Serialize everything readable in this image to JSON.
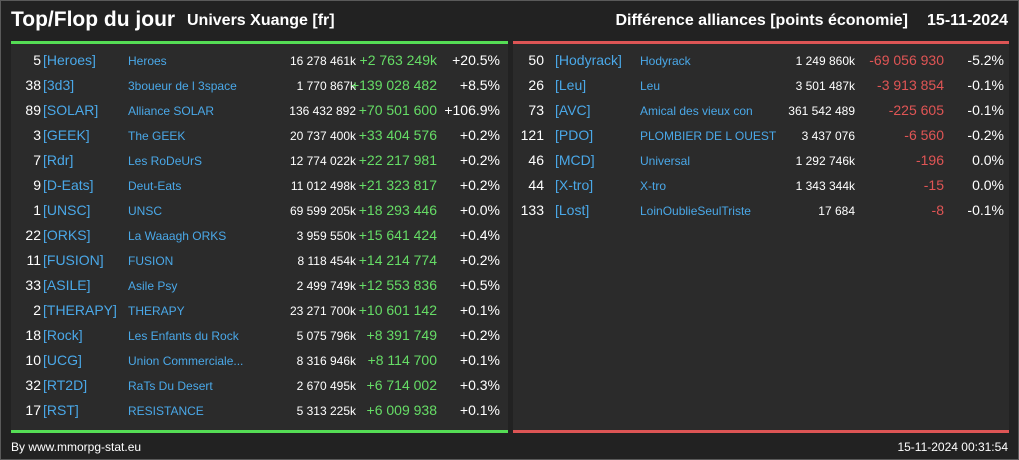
{
  "header": {
    "title": "Top/Flop du jour",
    "universe": "Univers Xuange [fr]",
    "subtitle": "Différence alliances [points économie]",
    "date": "15-11-2024"
  },
  "colors": {
    "background": "#222222",
    "panel": "#2b2b2b",
    "top_accent": "#55dd55",
    "flop_accent": "#dd5555",
    "tag_color": "#4aa8e8",
    "positive": "#66dd66",
    "negative": "#e05555"
  },
  "top": [
    {
      "rank": "5",
      "tag": "[Heroes]",
      "name": "Heroes",
      "total": "16 278 461k",
      "diff": "+2 763 249k",
      "pct": "+20.5%"
    },
    {
      "rank": "38",
      "tag": "[3d3]",
      "name": "3boueur de l 3space",
      "total": "1 770 867k",
      "diff": "+139 028 482",
      "pct": "+8.5%"
    },
    {
      "rank": "89",
      "tag": "[SOLAR]",
      "name": "Alliance SOLAR",
      "total": "136 432 892",
      "diff": "+70 501 600",
      "pct": "+106.9%"
    },
    {
      "rank": "3",
      "tag": "[GEEK]",
      "name": "The GEEK",
      "total": "20 737 400k",
      "diff": "+33 404 576",
      "pct": "+0.2%"
    },
    {
      "rank": "7",
      "tag": "[Rdr]",
      "name": "Les RoDeUrS",
      "total": "12 774 022k",
      "diff": "+22 217 981",
      "pct": "+0.2%"
    },
    {
      "rank": "9",
      "tag": "[D-Eats]",
      "name": "Deut-Eats",
      "total": "11 012 498k",
      "diff": "+21 323 817",
      "pct": "+0.2%"
    },
    {
      "rank": "1",
      "tag": "[UNSC]",
      "name": "UNSC",
      "total": "69 599 205k",
      "diff": "+18 293 446",
      "pct": "+0.0%"
    },
    {
      "rank": "22",
      "tag": "[ORKS]",
      "name": "La Waaagh ORKS",
      "total": "3 959 550k",
      "diff": "+15 641 424",
      "pct": "+0.4%"
    },
    {
      "rank": "11",
      "tag": "[FUSION]",
      "name": "FUSION",
      "total": "8 118 454k",
      "diff": "+14 214 774",
      "pct": "+0.2%"
    },
    {
      "rank": "33",
      "tag": "[ASILE]",
      "name": "Asile Psy",
      "total": "2 499 749k",
      "diff": "+12 553 836",
      "pct": "+0.5%"
    },
    {
      "rank": "2",
      "tag": "[THERAPY]",
      "name": "THERAPY",
      "total": "23 271 700k",
      "diff": "+10 601 142",
      "pct": "+0.1%"
    },
    {
      "rank": "18",
      "tag": "[Rock]",
      "name": "Les Enfants du Rock",
      "total": "5 075 796k",
      "diff": "+8 391 749",
      "pct": "+0.2%"
    },
    {
      "rank": "10",
      "tag": "[UCG]",
      "name": "Union Commerciale...",
      "total": "8 316 946k",
      "diff": "+8 114 700",
      "pct": "+0.1%"
    },
    {
      "rank": "32",
      "tag": "[RT2D]",
      "name": "RaTs Du Desert",
      "total": "2 670 495k",
      "diff": "+6 714 002",
      "pct": "+0.3%"
    },
    {
      "rank": "17",
      "tag": "[RST]",
      "name": "RESISTANCE",
      "total": "5 313 225k",
      "diff": "+6 009 938",
      "pct": "+0.1%"
    }
  ],
  "flop": [
    {
      "rank": "50",
      "tag": "[Hodyrack]",
      "name": "Hodyrack",
      "total": "1 249 860k",
      "diff": "-69 056 930",
      "pct": "-5.2%"
    },
    {
      "rank": "26",
      "tag": "[Leu]",
      "name": "Leu",
      "total": "3 501 487k",
      "diff": "-3 913 854",
      "pct": "-0.1%"
    },
    {
      "rank": "73",
      "tag": "[AVC]",
      "name": "Amical des vieux con",
      "total": "361 542 489",
      "diff": "-225 605",
      "pct": "-0.1%"
    },
    {
      "rank": "121",
      "tag": "[PDO]",
      "name": "PLOMBIER DE L OUEST",
      "total": "3 437 076",
      "diff": "-6 560",
      "pct": "-0.2%"
    },
    {
      "rank": "46",
      "tag": "[MCD]",
      "name": "Universal",
      "total": "1 292 746k",
      "diff": "-196",
      "pct": "0.0%"
    },
    {
      "rank": "44",
      "tag": "[X-tro]",
      "name": "X-tro",
      "total": "1 343 344k",
      "diff": "-15",
      "pct": "0.0%"
    },
    {
      "rank": "133",
      "tag": "[Lost]",
      "name": "LoinOublieSeulTriste",
      "total": "17 684",
      "diff": "-8",
      "pct": "-0.1%"
    }
  ],
  "footer": {
    "source": "By www.mmorpg-stat.eu",
    "timestamp": "15-11-2024 00:31:54"
  }
}
